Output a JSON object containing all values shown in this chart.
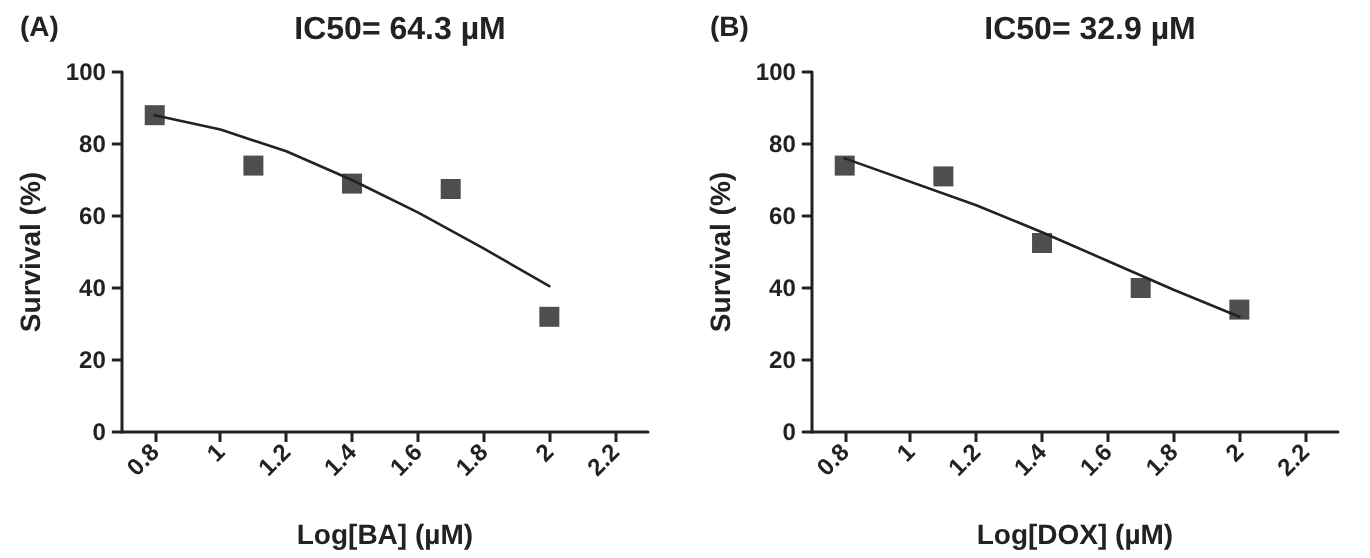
{
  "chart_data": [
    {
      "type": "scatter",
      "title": "IC50= 64.3 µM",
      "annotations": [
        "(A)"
      ],
      "xlabel": "Log[BA] (µM)",
      "ylabel": "Survival (%)",
      "xlim": [
        0.7,
        2.3
      ],
      "xticks": [
        0.8,
        1,
        1.2,
        1.4,
        1.6,
        1.8,
        2,
        2.2
      ],
      "ylim": [
        0,
        100
      ],
      "yticks": [
        0,
        20,
        40,
        60,
        80,
        100
      ],
      "grid": false,
      "series": [
        {
          "marker": "square",
          "color": "#222222",
          "x": [
            0.8,
            1.1,
            1.4,
            1.7,
            2
          ],
          "values": [
            88,
            74,
            69,
            67.5,
            32
          ]
        },
        {
          "type": "line",
          "marker": "none",
          "line_style": "solid",
          "color": "#222222",
          "x": [
            0.8,
            1,
            1.2,
            1.4,
            1.6,
            1.8,
            2
          ],
          "values": [
            88,
            84,
            78,
            70,
            61,
            51,
            40.5
          ]
        }
      ]
    },
    {
      "type": "scatter",
      "title": "IC50= 32.9 µM",
      "annotations": [
        "(B)"
      ],
      "xlabel": "Log[DOX] (µM)",
      "ylabel": "Survival (%)",
      "xlim": [
        0.7,
        2.3
      ],
      "xticks": [
        0.8,
        1,
        1.2,
        1.4,
        1.6,
        1.8,
        2,
        2.2
      ],
      "ylim": [
        0,
        100
      ],
      "yticks": [
        0,
        20,
        40,
        60,
        80,
        100
      ],
      "grid": false,
      "series": [
        {
          "marker": "square",
          "color": "#222222",
          "x": [
            0.8,
            1.1,
            1.4,
            1.7,
            2
          ],
          "values": [
            74,
            71,
            52.5,
            40,
            34
          ]
        },
        {
          "type": "line",
          "marker": "none",
          "line_style": "solid",
          "color": "#222222",
          "x": [
            0.8,
            1.2,
            1.4,
            1.6,
            1.8,
            2
          ],
          "values": [
            76,
            63,
            55.5,
            47.5,
            39.5,
            32
          ]
        }
      ]
    }
  ]
}
